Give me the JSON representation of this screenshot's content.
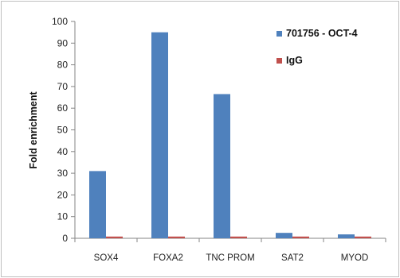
{
  "chart_data": {
    "type": "bar",
    "title": "",
    "xlabel": "",
    "ylabel": "Fold enrichment",
    "ylim": [
      0,
      100
    ],
    "yticks": [
      0,
      10,
      20,
      30,
      40,
      50,
      60,
      70,
      80,
      90,
      100
    ],
    "categories": [
      "SOX4",
      "FOXA2",
      "TNC PROM",
      "SAT2",
      "MYOD"
    ],
    "series": [
      {
        "name": "701756 - OCT-4",
        "color": "#4f81bd",
        "values": [
          31,
          95,
          66.5,
          2.5,
          1.8
        ]
      },
      {
        "name": "IgG",
        "color": "#c0504d",
        "values": [
          0.8,
          0.8,
          0.8,
          0.8,
          0.8
        ]
      }
    ],
    "legend_position": "top-right",
    "grid": false
  }
}
